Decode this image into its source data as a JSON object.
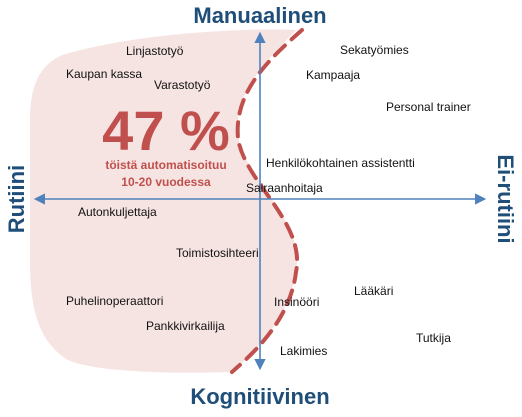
{
  "axes": {
    "top": "Manuaalinen",
    "bottom": "Kognitiivinen",
    "left": "Rutiini",
    "right": "Ei-rutiini"
  },
  "highlight": {
    "percent": "47 %",
    "line1": "töistä automatisoituu",
    "line2": "10-20 vuodessa"
  },
  "jobs": [
    "Linjastotyö",
    "Kaupan kassa",
    "Varastotyö",
    "Sekatyömies",
    "Kampaaja",
    "Personal trainer",
    "Henkilökohtainen assistentti",
    "Sairaanhoitaja",
    "Autonkuljettaja",
    "Toimistosihteeri",
    "Puhelinoperaattori",
    "Pankkivirkailija",
    "Insinööri",
    "Lääkäri",
    "Tutkija",
    "Lakimies"
  ],
  "colors": {
    "zone_fill": "#f6e4e2",
    "dashed_boundary": "#c0504d",
    "percent_text": "#c0504d",
    "axis": "#4f81bd",
    "axis_labels": "#1f4e79"
  }
}
